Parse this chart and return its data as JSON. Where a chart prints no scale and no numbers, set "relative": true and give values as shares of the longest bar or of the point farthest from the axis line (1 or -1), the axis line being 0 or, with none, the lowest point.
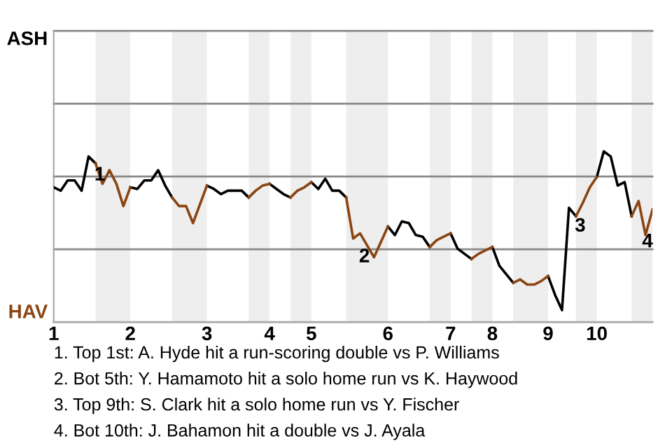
{
  "chart_data": {
    "type": "line",
    "relative": true,
    "categories": [
      "1",
      null,
      null,
      null,
      null,
      null,
      null,
      null,
      null,
      null,
      null,
      "2",
      null,
      null,
      null,
      null,
      null,
      null,
      null,
      null,
      null,
      null,
      "3",
      null,
      null,
      null,
      null,
      null,
      null,
      null,
      null,
      "4",
      null,
      null,
      null,
      null,
      null,
      "5",
      null,
      null,
      null,
      null,
      null,
      null,
      null,
      null,
      null,
      null,
      "6",
      null,
      null,
      null,
      null,
      null,
      null,
      null,
      null,
      "7",
      null,
      null,
      null,
      null,
      null,
      "8",
      null,
      null,
      null,
      null,
      null,
      null,
      null,
      "9",
      null,
      null,
      null,
      null,
      null,
      null,
      "10",
      null,
      null,
      null,
      null,
      null,
      null,
      null,
      null
    ],
    "legend": false,
    "marker": "none",
    "line_style": "solid",
    "ref_lines": [
      {
        "axis": "y",
        "value": 1.706,
        "label": "ASH",
        "color": "#888888"
      },
      {
        "axis": "y",
        "value": 1.28,
        "label": null,
        "color": "#888888"
      },
      {
        "axis": "y",
        "value": 0.853,
        "label": null,
        "color": "#888888"
      },
      {
        "axis": "y",
        "value": 0.427,
        "label": null,
        "color": "#888888"
      },
      {
        "axis": "y",
        "value": 0,
        "label": "HAV",
        "color": "#aaaaaa"
      }
    ],
    "series": [
      {
        "color": "#000000",
        "values": [
          0.79,
          0.77,
          0.83,
          0.83,
          0.77,
          0.97,
          0.93,
          null,
          null,
          null,
          null,
          0.79,
          0.78,
          0.83,
          0.83,
          0.89,
          0.8,
          0.73,
          null,
          null,
          null,
          null,
          0.8,
          0.78,
          0.75,
          0.77,
          0.77,
          0.77,
          0.73,
          null,
          null,
          0.81,
          0.78,
          0.75,
          0.73,
          null,
          null,
          0.82,
          0.78,
          0.84,
          0.77,
          0.77,
          0.73,
          null,
          null,
          null,
          null,
          null,
          0.56,
          0.51,
          0.59,
          0.58,
          0.51,
          0.5,
          0.44,
          null,
          null,
          0.52,
          0.43,
          0.4,
          0.37,
          null,
          null,
          0.44,
          0.33,
          0.28,
          0.23,
          null,
          null,
          null,
          null,
          0.27,
          0.16,
          0.07,
          0.67,
          0.62,
          null,
          null,
          0.85,
          1,
          0.97,
          0.8,
          0.82,
          0.62,
          null,
          null,
          null
        ]
      },
      {
        "color": "#8b4513",
        "values": [
          null,
          null,
          null,
          null,
          null,
          null,
          0.93,
          0.81,
          0.89,
          0.81,
          0.68,
          0.79,
          null,
          null,
          null,
          null,
          null,
          0.73,
          0.68,
          0.68,
          0.58,
          0.69,
          0.8,
          null,
          null,
          null,
          null,
          null,
          0.73,
          0.77,
          0.8,
          0.81,
          null,
          null,
          0.73,
          0.77,
          0.79,
          0.82,
          null,
          null,
          null,
          null,
          0.73,
          0.49,
          0.52,
          0.45,
          0.38,
          0.47,
          0.56,
          null,
          null,
          null,
          null,
          null,
          0.44,
          0.48,
          0.5,
          0.52,
          null,
          null,
          0.37,
          0.4,
          0.42,
          0.44,
          null,
          null,
          0.23,
          0.25,
          0.22,
          0.22,
          0.24,
          0.27,
          null,
          null,
          null,
          0.62,
          0.7,
          0.79,
          0.85,
          null,
          null,
          null,
          null,
          0.62,
          0.71,
          0.51,
          0.66
        ]
      }
    ],
    "annotations": [
      {
        "text": "1",
        "y": 0.97
      },
      {
        "text": "2",
        "y": 0.49
      },
      {
        "text": "3",
        "y": 0.67
      },
      {
        "text": "4",
        "y": 0.51
      },
      "1. Top 1st: A. Hyde hit a run-scoring double vs P. Williams",
      "2. Bot 5th: Y. Hamamoto hit a solo home run vs K. Haywood",
      "3. Top 9th: S. Clark hit a solo home run vs Y. Fischer",
      "4. Bot 10th: J. Bahamon hit a double vs J. Ayala"
    ]
  }
}
